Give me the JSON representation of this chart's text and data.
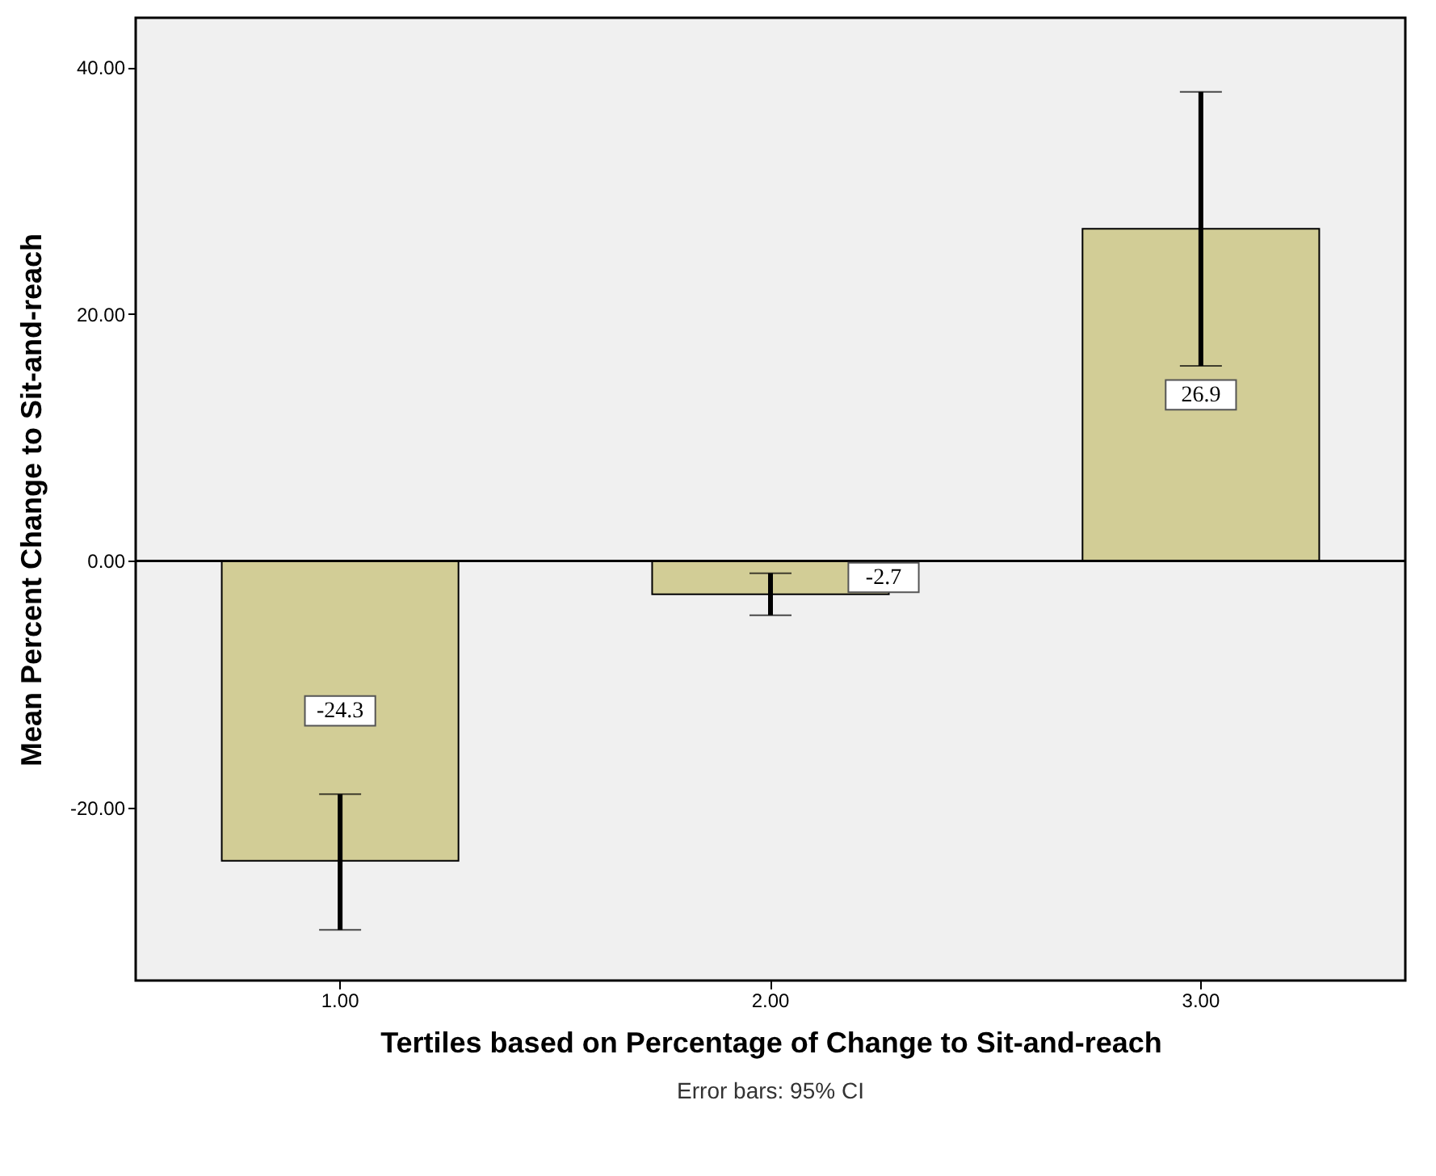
{
  "chart_data": {
    "type": "bar",
    "xlabel": "Tertiles based on Percentage of Change to Sit-and-reach",
    "ylabel": "Mean Percent Change to Sit-and-reach",
    "categories": [
      "1.00",
      "2.00",
      "3.00"
    ],
    "values": [
      -24.3,
      -2.7,
      26.9
    ],
    "errors": [
      [
        -29.9,
        -18.9
      ],
      [
        -4.4,
        -1.0
      ],
      [
        15.8,
        38.0
      ]
    ],
    "color": "#d2cd96",
    "data_labels": true,
    "ylim": [
      -34,
      44
    ],
    "yticks": [
      {
        "value": -20,
        "label": "-20.00"
      },
      {
        "value": 0,
        "label": "0.00"
      },
      {
        "value": 20,
        "label": "20.00"
      },
      {
        "value": 40,
        "label": "40.00"
      }
    ],
    "grid": false,
    "ref_lines": [
      {
        "axis": "y",
        "value": 0
      }
    ],
    "annotations": [
      "Error bars: 95% CI"
    ]
  }
}
